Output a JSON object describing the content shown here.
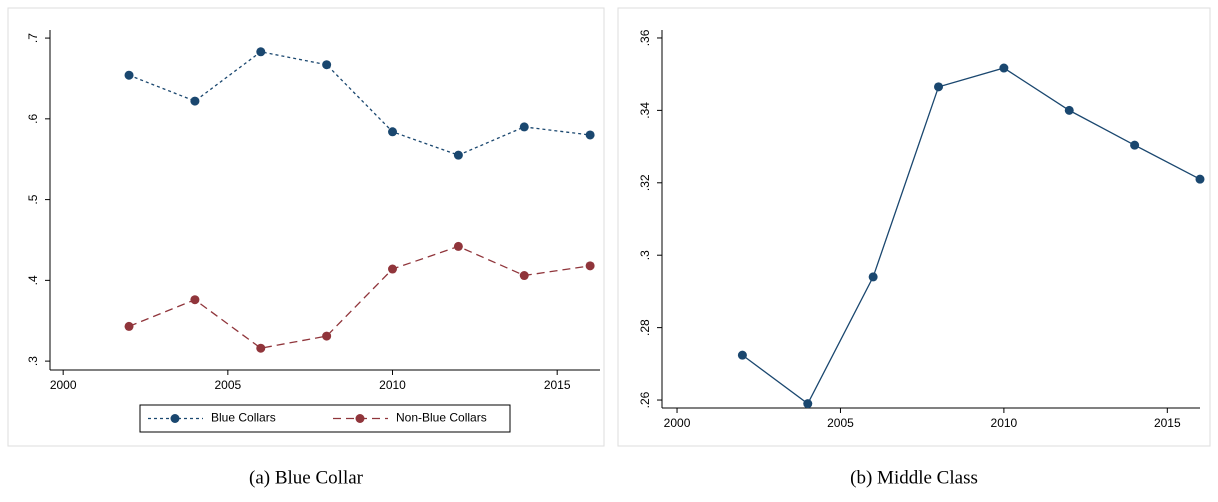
{
  "chart_data": [
    {
      "type": "line",
      "caption": "(a) Blue Collar",
      "x": [
        2002,
        2004,
        2006,
        2008,
        2010,
        2012,
        2014,
        2016
      ],
      "series": [
        {
          "name": "Blue Collars",
          "color": "#1a476f",
          "dash": "3,3",
          "values": [
            0.654,
            0.622,
            0.683,
            0.667,
            0.584,
            0.555,
            0.59,
            0.58
          ]
        },
        {
          "name": "Non-Blue Collars",
          "color": "#90353b",
          "dash": "8,5",
          "values": [
            0.343,
            0.376,
            0.316,
            0.331,
            0.414,
            0.442,
            0.406,
            0.418
          ]
        }
      ],
      "xlim": [
        1999.6,
        2016.3
      ],
      "xticks": [
        2000,
        2005,
        2010,
        2015
      ],
      "ylim": [
        0.289,
        0.71
      ],
      "yticks": [
        {
          "value": 0.3,
          "label": ".3"
        },
        {
          "value": 0.4,
          "label": ".4"
        },
        {
          "value": 0.5,
          "label": ".5"
        },
        {
          "value": 0.6,
          "label": ".6"
        },
        {
          "value": 0.7,
          "label": ".7"
        }
      ],
      "legend": "bottom"
    },
    {
      "type": "line",
      "caption": "(b) Middle Class",
      "x": [
        2002,
        2004,
        2006,
        2008,
        2010,
        2012,
        2014,
        2016
      ],
      "values": [
        0.2724,
        0.259,
        0.294,
        0.3465,
        0.3517,
        0.34,
        0.3304,
        0.321
      ],
      "color": "#1a476f",
      "xlim": [
        1999.54,
        2016.0
      ],
      "xticks": [
        2000,
        2005,
        2010,
        2015
      ],
      "ylim": [
        0.2578,
        0.3622
      ],
      "yticks": [
        {
          "value": 0.26,
          "label": ".26"
        },
        {
          "value": 0.28,
          "label": ".28"
        },
        {
          "value": 0.3,
          "label": ".3"
        },
        {
          "value": 0.32,
          "label": ".32"
        },
        {
          "value": 0.34,
          "label": ".34"
        },
        {
          "value": 0.36,
          "label": ".36"
        }
      ]
    }
  ]
}
